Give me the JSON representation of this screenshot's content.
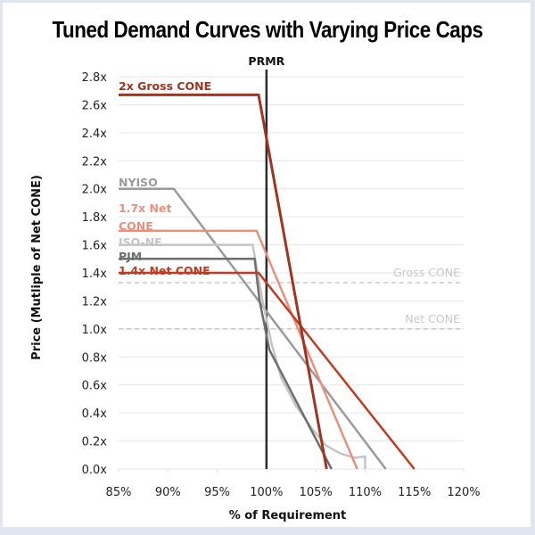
{
  "chart_data": {
    "type": "line",
    "title": "Tuned Demand Curves with Varying Price Caps",
    "xlabel": "% of Requirement",
    "ylabel": "Price (Mutliple of Net CONE)",
    "xlim": [
      85,
      120
    ],
    "ylim": [
      0,
      2.8
    ],
    "xticks": [
      85,
      90,
      95,
      100,
      105,
      110,
      115,
      120
    ],
    "xtick_labels": [
      "85%",
      "90%",
      "95%",
      "100%",
      "105%",
      "110%",
      "115%",
      "120%"
    ],
    "yticks": [
      0,
      0.2,
      0.4,
      0.6,
      0.8,
      1.0,
      1.2,
      1.4,
      1.6,
      1.8,
      2.0,
      2.2,
      2.4,
      2.6,
      2.8
    ],
    "ytick_labels": [
      "0.0x",
      "0.2x",
      "0.4x",
      "0.6x",
      "0.8x",
      "1.0x",
      "1.2x",
      "1.4x",
      "1.6x",
      "1.8x",
      "2.0x",
      "2.2x",
      "2.4x",
      "2.6x",
      "2.8x"
    ],
    "grid": true,
    "vertical_line": {
      "label": "PRMR",
      "x": 100,
      "color": "#2b2b2b"
    },
    "reference_lines": [
      {
        "name": "Gross CONE",
        "y": 1.33,
        "color": "#c8c8c8"
      },
      {
        "name": "Net CONE",
        "y": 1.0,
        "color": "#c8c8c8"
      }
    ],
    "series": [
      {
        "name": "2x Gross CONE",
        "label_lines": [
          "2x Gross CONE"
        ],
        "color": "#a0341e",
        "width": 3,
        "points": [
          [
            85,
            2.67
          ],
          [
            99.2,
            2.67
          ],
          [
            106.1,
            0
          ]
        ]
      },
      {
        "name": "NYISO",
        "label_lines": [
          "NYISO"
        ],
        "color": "#9a9a9a",
        "width": 2.5,
        "points": [
          [
            85,
            2.0
          ],
          [
            90.6,
            2.0
          ],
          [
            112.1,
            0
          ]
        ]
      },
      {
        "name": "1.7x Net CONE",
        "label_lines": [
          "1.7x Net",
          "CONE"
        ],
        "color": "#e8907e",
        "width": 2.5,
        "points": [
          [
            85,
            1.7
          ],
          [
            99.0,
            1.7
          ],
          [
            109.2,
            0
          ]
        ]
      },
      {
        "name": "ISO-NE",
        "label_lines": [
          "ISO-NE"
        ],
        "color": "#c4c4c4",
        "width": 2.5,
        "points": [
          [
            85,
            1.6
          ],
          [
            98.6,
            1.6
          ],
          [
            99.6,
            1.2
          ],
          [
            100.5,
            0.9
          ],
          [
            101.5,
            0.65
          ],
          [
            103,
            0.45
          ],
          [
            104.5,
            0.3
          ],
          [
            106,
            0.17
          ],
          [
            107.5,
            0.11
          ],
          [
            109,
            0.08
          ],
          [
            110,
            0.09
          ],
          [
            110,
            0
          ]
        ]
      },
      {
        "name": "PJM",
        "label_lines": [
          "PJM"
        ],
        "color": "#6e6e6e",
        "width": 2.5,
        "points": [
          [
            85,
            1.5
          ],
          [
            98.8,
            1.5
          ],
          [
            99.3,
            1.2
          ],
          [
            100.3,
            0.85
          ],
          [
            106.6,
            0
          ]
        ]
      },
      {
        "name": "1.4x Net CONE",
        "label_lines": [
          "1.4x Net CONE"
        ],
        "color": "#c23a22",
        "width": 2.5,
        "points": [
          [
            85,
            1.4
          ],
          [
            99.2,
            1.4
          ],
          [
            115.0,
            0
          ]
        ]
      }
    ]
  }
}
